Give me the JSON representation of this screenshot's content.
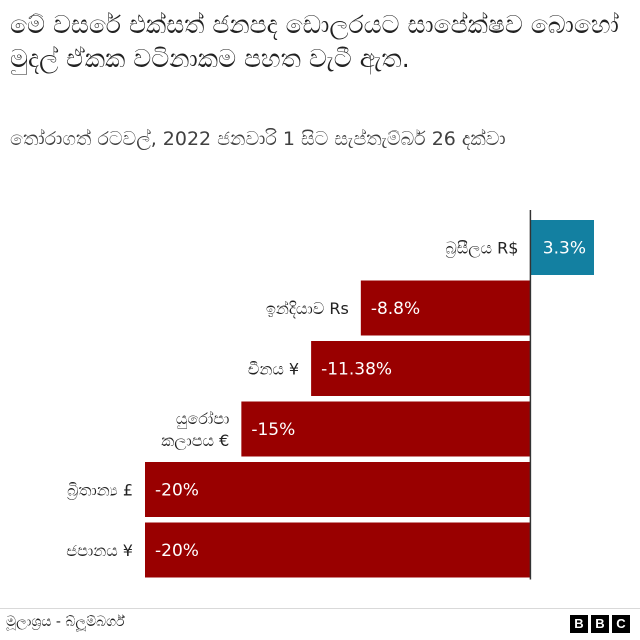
{
  "chart_data": {
    "type": "bar",
    "orientation": "horizontal",
    "title": "මේ වසරේ එක්සත් ජනපද ඩොලරයට සාපේක්ෂව බොහෝ මුදල් ඒකක වටිනාකම පහත වැටී ඇත.",
    "subtitle": "තෝරාගත් රටවල්, 2022 ජනවාරි 1 සිට සැප්තැම්බර් 26 දක්වා",
    "categories": [
      [
        "බ්‍රසීලය R$"
      ],
      [
        "ඉන්දියාව Rs"
      ],
      [
        "චීනය ¥"
      ],
      [
        "යුරෝපා",
        "කලාපය €"
      ],
      [
        "බ්‍රිතාන්‍ය £"
      ],
      [
        "ජපානය ¥"
      ]
    ],
    "values": [
      3.3,
      -8.8,
      -11.38,
      -15,
      -20,
      -20
    ],
    "value_labels": [
      "3.3%",
      "-8.8%",
      "-11.38%",
      "-15%",
      "-20%",
      "-20%"
    ],
    "unit": "%",
    "xlim": [
      -20,
      3.3
    ],
    "colors": {
      "positive": "#1380a1",
      "negative": "#990000"
    }
  },
  "footer": {
    "source": "මූලාශ්‍රය - බ්ලූම්බර්ග්",
    "logo_letters": [
      "B",
      "B",
      "C"
    ]
  }
}
